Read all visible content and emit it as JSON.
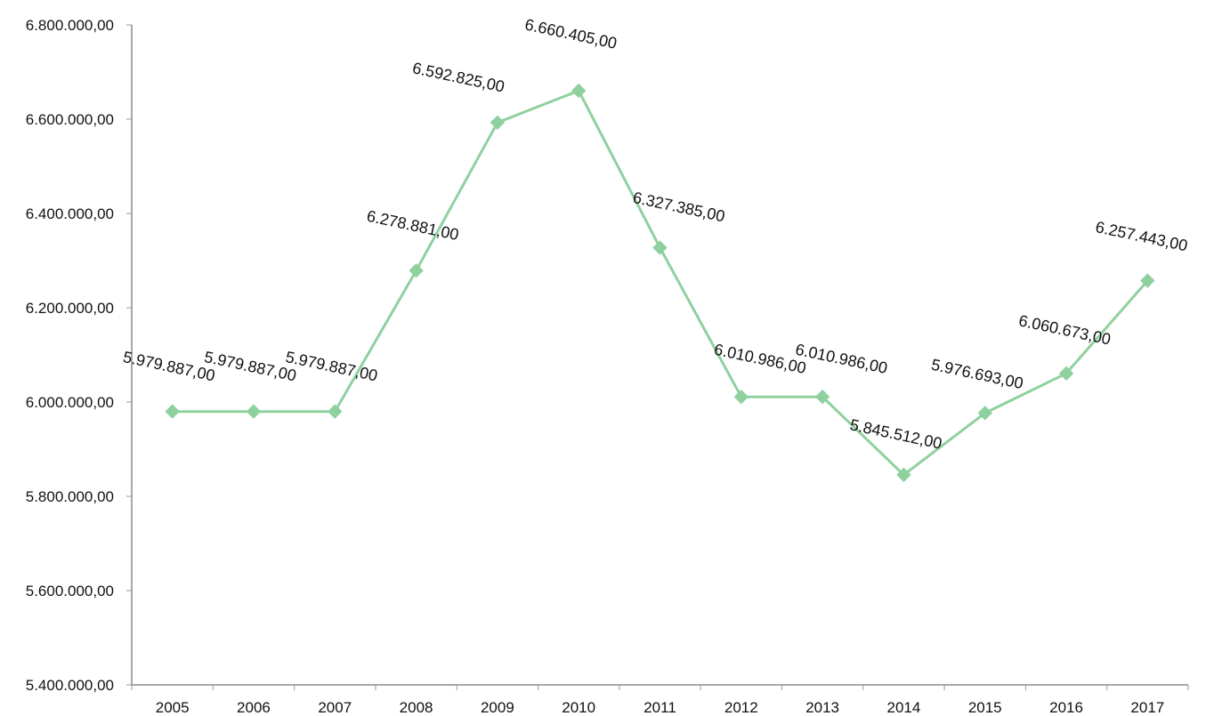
{
  "chart_data": {
    "type": "line",
    "title": "",
    "xlabel": "",
    "ylabel": "",
    "categories": [
      "2005",
      "2006",
      "2007",
      "2008",
      "2009",
      "2010",
      "2011",
      "2012",
      "2013",
      "2014",
      "2015",
      "2016",
      "2017"
    ],
    "series": [
      {
        "values": [
          5979887,
          5979887,
          5979887,
          6278881,
          6592825,
          6660405,
          6327385,
          6010986,
          6010986,
          5845512,
          5976693,
          6060673,
          6257443
        ],
        "data_labels": [
          "5.979.887,00",
          "5.979.887,00",
          "5.979.887,00",
          "6.278.881,00",
          "6.592.825,00",
          "6.660.405,00",
          "6.327.385,00",
          "6.010.986,00",
          "6.010.986,00",
          "5.845.512,00",
          "5.976.693,00",
          "6.060.673,00",
          "6.257.443,00"
        ],
        "color": "#8fd19e",
        "marker": "diamond"
      }
    ],
    "ylim": [
      5400000,
      6800000
    ],
    "yticks": [
      5400000,
      5600000,
      5800000,
      6000000,
      6200000,
      6400000,
      6600000,
      6800000
    ],
    "ytick_labels": [
      "5.400.000,00",
      "5.600.000,00",
      "5.800.000,00",
      "6.000.000,00",
      "6.200.000,00",
      "6.400.000,00",
      "6.600.000,00",
      "6.800.000,00"
    ],
    "grid": false,
    "legend": "none"
  }
}
